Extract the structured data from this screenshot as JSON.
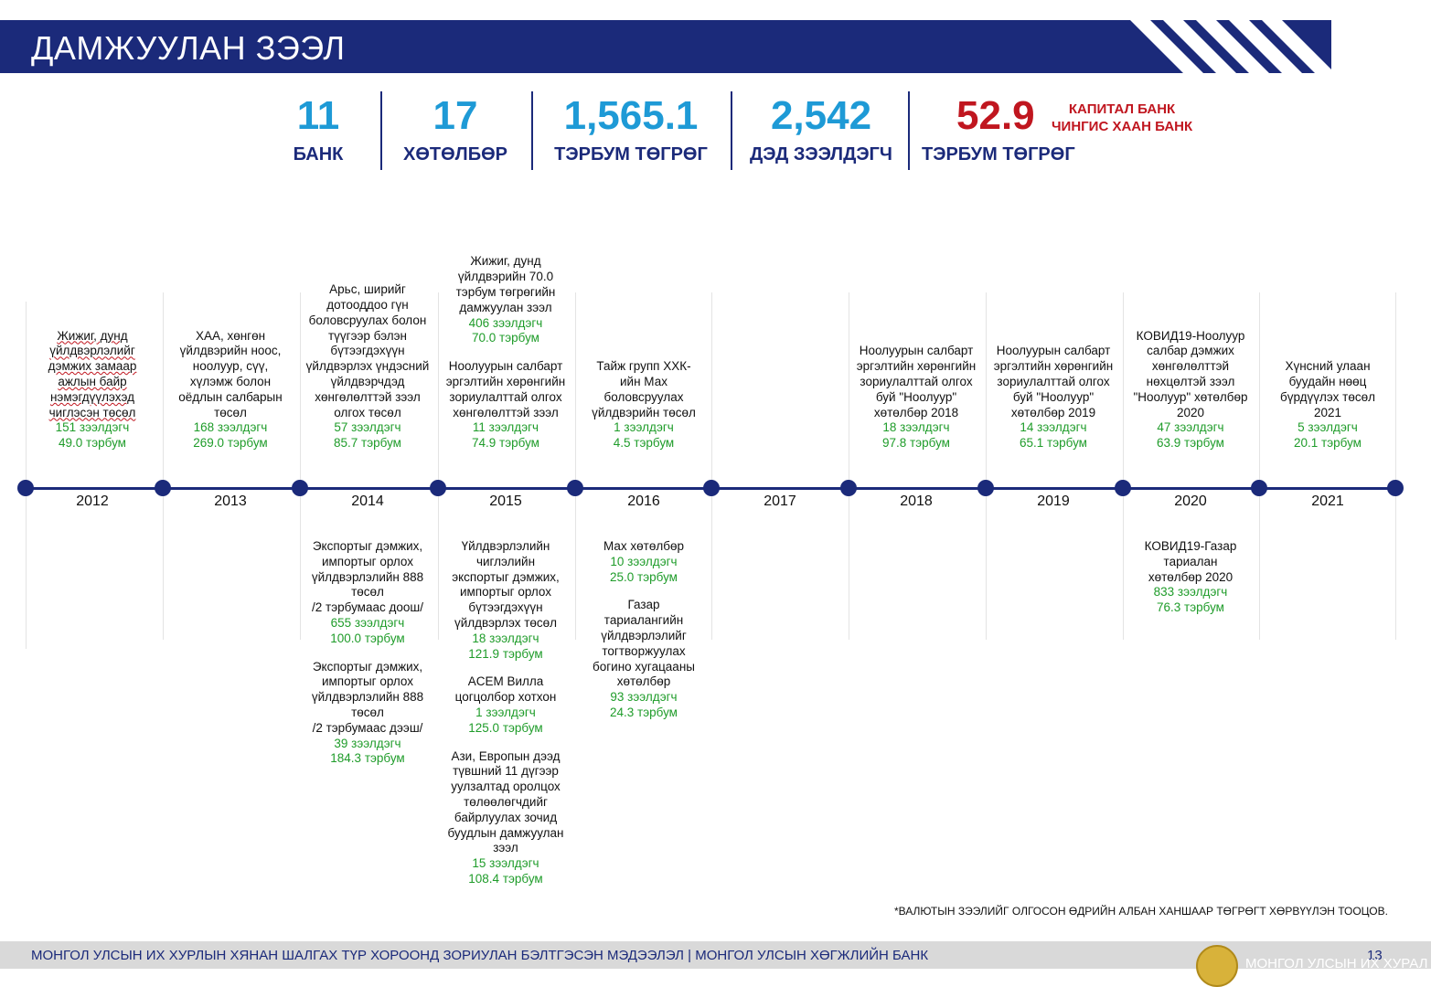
{
  "header": {
    "title": "ДАМЖУУЛАН ЗЭЭЛ"
  },
  "stats": [
    {
      "value": "11",
      "label": "БАНК"
    },
    {
      "value": "17",
      "label": "ХӨТӨЛБӨР"
    },
    {
      "value": "1,565.1",
      "label": "ТЭРБУМ ТӨГРӨГ"
    },
    {
      "value": "2,542",
      "label": "ДЭД ЗЭЭЛДЭГЧ"
    },
    {
      "value": "52.9",
      "label": "ТЭРБУМ ТӨГРӨГ"
    }
  ],
  "red_tags": [
    "КАПИТАЛ БАНК",
    "ЧИНГИС ХААН БАНК"
  ],
  "years": [
    "2012",
    "2013",
    "2014",
    "2015",
    "2016",
    "2017",
    "2018",
    "2019",
    "2020",
    "2021"
  ],
  "above": [
    [
      {
        "text": "Жижиг, дунд\nүйлдвэрлэлийг\nдэмжих замаар\nажлын байр\nнэмэгдүүлэхэд\nчиглэсэн төсөл",
        "count": "151 зээлдэгч",
        "amount": "49.0 тэрбум"
      }
    ],
    [
      {
        "text": "ХАА, хөнгөн\nүйлдвэрийн ноос,\nноолуур, сүү,\nхүлэмж болон\nоёдлын салбарын\nтөсөл",
        "count": "168 зээлдэгч",
        "amount": "269.0 тэрбум"
      }
    ],
    [
      {
        "text": "Арьс, ширийг\nдотооддоо гүн\nболовсруулах болон\nтүүгээр бэлэн\nбүтээгдэхүүн\nүйлдвэрлэх үндэсний\nүйлдвэрчдэд\nхөнгөлөлттэй зээл\nолгох төсөл",
        "count": "57 зээлдэгч",
        "amount": "85.7 тэрбум"
      }
    ],
    [
      {
        "text": "Жижиг, дунд\nүйлдвэрийн 70.0\nтэрбум төгрөгийн\nдамжуулан зээл",
        "count": "406 зээлдэгч",
        "amount": "70.0 тэрбум"
      },
      {
        "text": "Ноолуурын салбарт\nэргэлтийн хөрөнгийн\nзориулалттай олгох\nхөнгөлөлттэй зээл",
        "count": "11 зээлдэгч",
        "amount": "74.9 тэрбум"
      }
    ],
    [
      {
        "text": "Тайж групп ХХК-\nийн Мах\nболовсруулах\nүйлдвэрийн төсөл",
        "count": "1 зээлдэгч",
        "amount": "4.5 тэрбум"
      }
    ],
    [],
    [
      {
        "text": "Ноолуурын салбарт\nэргэлтийн хөрөнгийн\nзориулалттай олгох\nбуй \"Ноолуур\"\nхөтөлбөр 2018",
        "count": "18 зээлдэгч",
        "amount": "97.8 тэрбум"
      }
    ],
    [
      {
        "text": "Ноолуурын салбарт\nэргэлтийн хөрөнгийн\nзориулалттай олгох\nбуй \"Ноолуур\"\nхөтөлбөр 2019",
        "count": "14 зээлдэгч",
        "amount": "65.1 тэрбум"
      }
    ],
    [
      {
        "text": "КОВИД19-Ноолуур\nсалбар дэмжих\nхөнгөлөлттэй\nнөхцөлтэй зээл\n\"Ноолуур\" хөтөлбөр\n2020",
        "count": "47 зээлдэгч",
        "amount": "63.9 тэрбум"
      }
    ],
    [
      {
        "text": "Хүнсний улаан\nбуудайн нөөц\nбүрдүүлэх төсөл\n2021",
        "count": "5 зээлдэгч",
        "amount": "20.1 тэрбум"
      }
    ]
  ],
  "below": [
    [],
    [],
    [
      {
        "text": "Экспортыг дэмжих,\nимпортыг орлох\nүйлдвэрлэлийн 888\nтөсөл\n/2 тэрбумаас доош/",
        "count": "655 зээлдэгч",
        "amount": "100.0 тэрбум"
      },
      {
        "text": "Экспортыг дэмжих,\nимпортыг орлох\nүйлдвэрлэлийн 888\nтөсөл\n/2 тэрбумаас дээш/",
        "count": "39 зээлдэгч",
        "amount": "184.3 тэрбум"
      }
    ],
    [
      {
        "text": "Үйлдвэрлэлийн\nчиглэлийн\nэкспортыг дэмжих,\nимпортыг орлох\nбүтээгдэхүүн\nүйлдвэрлэх төсөл",
        "count": "18 зээлдэгч",
        "amount": "121.9 тэрбум"
      },
      {
        "text": "ACEM Вилла\nцогцолбор хотхон",
        "count": "1 зээлдэгч",
        "amount": "125.0 тэрбум"
      },
      {
        "text": "Ази, Европын дээд\nтүвшний 11 дүгээр\nуулзалтад оролцох\nтөлөөлөгчдийг\nбайрлуулах зочид\nбуудлын дамжуулан\nзээл",
        "count": "15 зээлдэгч",
        "amount": "108.4 тэрбум"
      }
    ],
    [
      {
        "text": "Мах хөтөлбөр",
        "count": "10 зээлдэгч",
        "amount": "25.0 тэрбум"
      },
      {
        "text": "Газар\nтариалангийн\nүйлдвэрлэлийг\nтогтворжуулах\nбогино хугацааны\nхөтөлбөр",
        "count": "93 зээлдэгч",
        "amount": "24.3 тэрбум"
      }
    ],
    [],
    [],
    [],
    [
      {
        "text": "КОВИД19-Газар\nтариалан\nхөтөлбөр 2020",
        "count": "833 зээлдэгч",
        "amount": "76.3 тэрбум"
      }
    ],
    []
  ],
  "footnote": "*ВАЛЮТЫН ЗЭЭЛИЙГ ОЛГОСОН ӨДРИЙН АЛБАН ХАНШААР ТӨГРӨГТ ХӨРВҮҮЛЭН ТООЦОВ.",
  "footer": {
    "text": "МОНГОЛ УЛСЫН ИХ ХУРЛЫН ХЯНАН ШАЛГАХ ТҮР ХОРООНД ЗОРИУЛАН БЭЛТГЭСЭН МЭДЭЭЛЭЛ  |  МОНГОЛ УЛСЫН ХӨГЖЛИЙН БАНК",
    "page": "13",
    "org": "МОНГОЛ УЛСЫН ИХ ХУРАЛ"
  }
}
